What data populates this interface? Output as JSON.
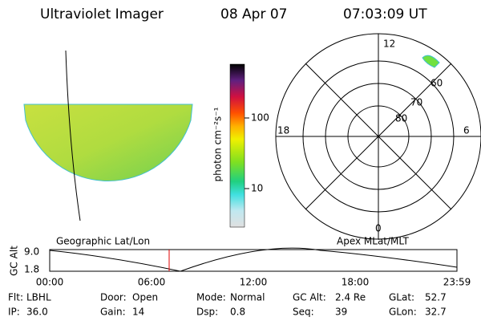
{
  "header": {
    "instrument": "Ultraviolet Imager",
    "date": "08 Apr 07",
    "time": "07:03:09 UT"
  },
  "colorbar": {
    "label": "photon cm⁻²s⁻¹",
    "ticks": [
      "100",
      "10"
    ]
  },
  "polar": {
    "mlt_labels": [
      "12",
      "18",
      "6",
      "0"
    ],
    "lat_labels": [
      "60",
      "70",
      "80"
    ]
  },
  "left_panel_label": "Geographic Lat/Lon",
  "right_panel_label": "Apex MLat/MLT",
  "altitude": {
    "axis_label": "GC Alt",
    "yticks": [
      "9.0",
      "1.8"
    ],
    "xticks": [
      "00:00",
      "06:00",
      "12:00",
      "18:00",
      "23:59"
    ]
  },
  "status": [
    [
      {
        "label": "Flt:",
        "value": "LBHL"
      },
      {
        "label": "IP:",
        "value": "36.0"
      }
    ],
    [
      {
        "label": "Door:",
        "value": "Open"
      },
      {
        "label": "Gain:",
        "value": "14"
      }
    ],
    [
      {
        "label": "Mode:",
        "value": "Normal"
      },
      {
        "label": "Dsp:",
        "value": "0.8"
      }
    ],
    [
      {
        "label": "GC Alt:",
        "value": "2.4 Re"
      },
      {
        "label": "Seq:",
        "value": "39"
      }
    ],
    [
      {
        "label": "GLat:",
        "value": "52.7"
      },
      {
        "label": "GLon:",
        "value": "32.7"
      }
    ]
  ]
}
